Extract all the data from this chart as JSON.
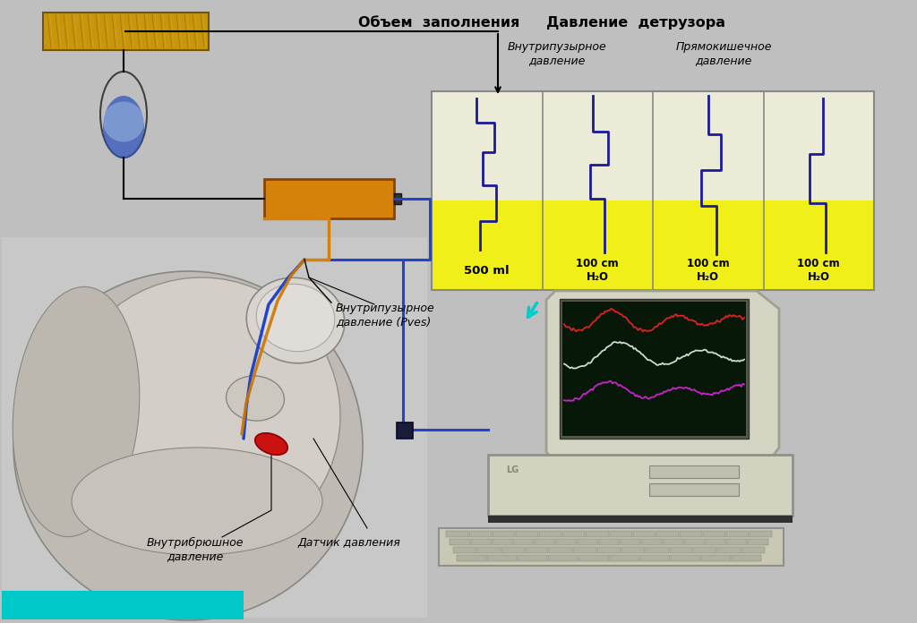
{
  "bg_color": "#c0bfc0",
  "fig_w": 10.24,
  "fig_h": 6.96,
  "text_objem": "Объем  заполнения",
  "text_davlenie": "Давление  детрузора",
  "text_vnutripuz_top": "Внутрипузырное\nдавление",
  "text_pryamo_top": "Прямокишечное\nдавление",
  "text_vnutripuz2": "Внутрипузырное\nдавление (Pves)",
  "text_vnutribr": "Внутрибрюшное\nдавление",
  "text_datchik": "Датчик давления",
  "label_500ml": "500 ml",
  "label_100_1": "100 cm\nH₂O",
  "label_100_2": "100 cm\nH₂O",
  "label_100_3": "100 cm\nH₂O",
  "orange_color": "#d4820a",
  "wood_color": "#c8960c",
  "panel_bg_top": "#f0f0d8",
  "panel_bg_bot": "#f5f520",
  "blue_line": "#1a1a9a",
  "monitor_color": "#d8d8c8",
  "screen_bg": "#081808",
  "tower_color": "#d0d0be",
  "kb_color": "#c8c8b4",
  "arrow_cyan": "#00cccc",
  "arrow_magenta": "#cc00cc",
  "arrow_red": "#cc2200",
  "cyan_bar": "#00c8c8",
  "connector_color": "#1a1a3a"
}
